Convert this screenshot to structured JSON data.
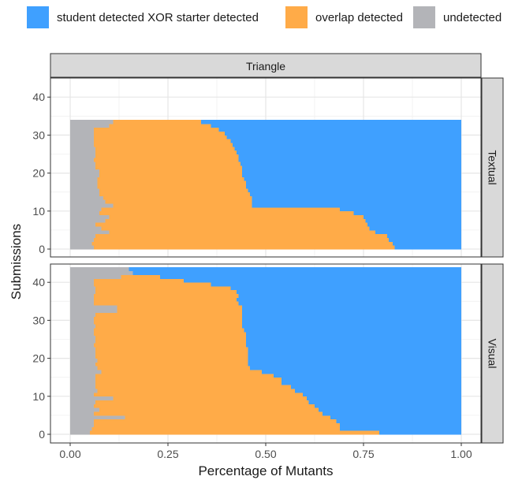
{
  "legend": {
    "items": [
      {
        "label": "student detected XOR starter detected",
        "color": "#3fa0ff"
      },
      {
        "label": "overlap detected",
        "color": "#ffab48"
      },
      {
        "label": "undetected",
        "color": "#b3b4b8"
      }
    ]
  },
  "chart_data": {
    "type": "bar",
    "orientation": "horizontal-stacked",
    "xlabel": "Percentage of Mutants",
    "ylabel": "Submissions",
    "xlim": [
      0,
      1
    ],
    "ylim": [
      0,
      45
    ],
    "x_ticks": [
      0,
      0.25,
      0.5,
      0.75,
      1
    ],
    "x_tick_labels": [
      "0.00",
      "0.25",
      "0.50",
      "0.75",
      "1.00"
    ],
    "y_ticks": [
      0,
      10,
      20,
      30,
      40
    ],
    "y_tick_labels": [
      "0",
      "10",
      "20",
      "30",
      "40"
    ],
    "grid": true,
    "column_strip": "Triangle",
    "series_colors": {
      "xor": "#3fa0ff",
      "overlap": "#ffab48",
      "undetected": "#b3b4b8"
    },
    "panels": [
      {
        "name": "Textual",
        "undetected": [
          0.06,
          0.055,
          0.06,
          0.065,
          0.1,
          0.08,
          0.065,
          0.09,
          0.1,
          0.075,
          0.08,
          0.11,
          0.09,
          0.085,
          0.075,
          0.075,
          0.07,
          0.07,
          0.07,
          0.075,
          0.075,
          0.065,
          0.065,
          0.06,
          0.065,
          0.065,
          0.065,
          0.06,
          0.06,
          0.06,
          0.06,
          0.06,
          0.1,
          0.11
        ],
        "undet_plus_overlap": [
          0.83,
          0.825,
          0.815,
          0.81,
          0.78,
          0.765,
          0.76,
          0.755,
          0.75,
          0.725,
          0.69,
          0.465,
          0.465,
          0.465,
          0.46,
          0.455,
          0.45,
          0.45,
          0.445,
          0.44,
          0.44,
          0.44,
          0.435,
          0.43,
          0.43,
          0.425,
          0.42,
          0.415,
          0.41,
          0.4,
          0.395,
          0.38,
          0.36,
          0.335
        ]
      },
      {
        "name": "Visual",
        "undetected": [
          0.05,
          0.055,
          0.06,
          0.06,
          0.14,
          0.06,
          0.075,
          0.06,
          0.065,
          0.11,
          0.06,
          0.07,
          0.065,
          0.065,
          0.065,
          0.065,
          0.08,
          0.07,
          0.065,
          0.07,
          0.065,
          0.065,
          0.065,
          0.06,
          0.065,
          0.065,
          0.06,
          0.06,
          0.065,
          0.06,
          0.06,
          0.065,
          0.12,
          0.12,
          0.06,
          0.06,
          0.06,
          0.065,
          0.065,
          0.06,
          0.06,
          0.13,
          0.16,
          0.15
        ],
        "undet_plus_overlap": [
          0.79,
          0.69,
          0.69,
          0.68,
          0.665,
          0.645,
          0.635,
          0.625,
          0.61,
          0.605,
          0.595,
          0.575,
          0.565,
          0.54,
          0.54,
          0.52,
          0.49,
          0.46,
          0.455,
          0.455,
          0.455,
          0.455,
          0.455,
          0.45,
          0.45,
          0.45,
          0.45,
          0.445,
          0.44,
          0.44,
          0.44,
          0.44,
          0.44,
          0.44,
          0.43,
          0.425,
          0.43,
          0.425,
          0.41,
          0.36,
          0.29,
          0.23,
          0.16,
          0.15
        ]
      }
    ]
  }
}
